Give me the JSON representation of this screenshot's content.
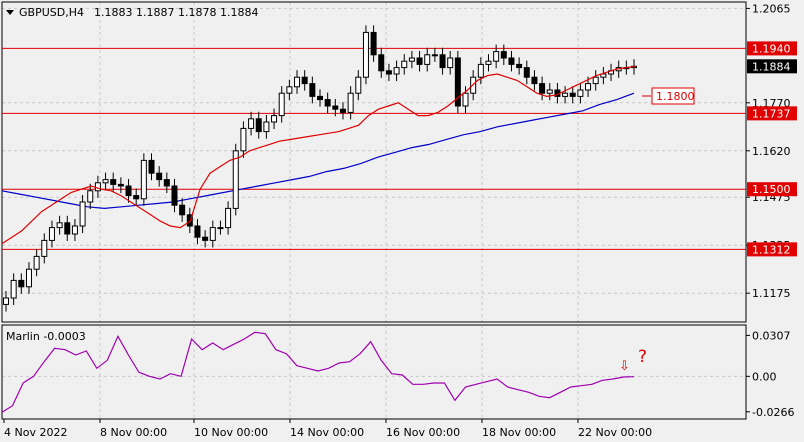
{
  "header": {
    "symbol": "GBPUSD,H4",
    "ohlc": "1.1883 1.1887 1.1878 1.1884"
  },
  "indicator": {
    "name": "Marlin -0.0003"
  },
  "annotations": {
    "arrow": "⇩",
    "question": "?"
  },
  "colors": {
    "price_line": "#e00000",
    "ma_fast": "#e00000",
    "ma_slow": "#0000c8",
    "marlin": "#a000b0",
    "price_box_bg": "#000000"
  },
  "chart_data": [
    {
      "type": "candlestick",
      "ylim": [
        1.1085,
        1.2085
      ],
      "price_ticks": [
        {
          "label": "1.2065",
          "value": 1.2065
        },
        {
          "label": "1.1770",
          "value": 1.177
        },
        {
          "label": "1.1620",
          "value": 1.162
        },
        {
          "label": "1.1475",
          "value": 1.1475
        },
        {
          "label": "1.1325",
          "value": 1.1325
        },
        {
          "label": "1.1175",
          "value": 1.1175
        }
      ],
      "hlines": [
        {
          "label": "1.1940",
          "value": 1.194
        },
        {
          "label": "1.1737",
          "value": 1.1737
        },
        {
          "label": "1.1500",
          "value": 1.15
        },
        {
          "label": "1.1312",
          "value": 1.1312
        }
      ],
      "current_price": {
        "label": "1.1884",
        "value": 1.1884
      },
      "target": {
        "label": "1.1800",
        "value": 1.18
      },
      "time_labels": [
        "4 Nov 2022",
        "8 Nov 00:00",
        "10 Nov 00:00",
        "14 Nov 00:00",
        "16 Nov 00:00",
        "18 Nov 00:00",
        "22 Nov 00:00"
      ],
      "closes": [
        1.116,
        1.1215,
        1.1195,
        1.125,
        1.129,
        1.134,
        1.138,
        1.1395,
        1.136,
        1.1385,
        1.146,
        1.1495,
        1.152,
        1.153,
        1.1515,
        1.151,
        1.148,
        1.147,
        1.159,
        1.155,
        1.153,
        1.151,
        1.145,
        1.142,
        1.1385,
        1.135,
        1.134,
        1.138,
        1.138,
        1.144,
        1.162,
        1.169,
        1.172,
        1.168,
        1.171,
        1.173,
        1.18,
        1.182,
        1.185,
        1.183,
        1.179,
        1.178,
        1.176,
        1.175,
        1.174,
        1.18,
        1.185,
        1.199,
        1.192,
        1.187,
        1.186,
        1.188,
        1.19,
        1.191,
        1.189,
        1.192,
        1.192,
        1.188,
        1.191,
        1.176,
        1.18,
        1.185,
        1.189,
        1.19,
        1.193,
        1.191,
        1.189,
        1.188,
        1.185,
        1.183,
        1.18,
        1.181,
        1.179,
        1.18,
        1.179,
        1.181,
        1.183,
        1.185,
        1.186,
        1.187,
        1.188,
        1.188,
        1.1884
      ],
      "ma_fast": [
        1.133,
        1.135,
        1.137,
        1.14,
        1.143,
        1.145,
        1.147,
        1.149,
        1.15,
        1.151,
        1.15,
        1.1495,
        1.148,
        1.146,
        1.144,
        1.142,
        1.14,
        1.1385,
        1.138,
        1.14,
        1.15,
        1.155,
        1.157,
        1.159,
        1.16,
        1.162,
        1.163,
        1.164,
        1.165,
        1.1655,
        1.166,
        1.1665,
        1.167,
        1.1675,
        1.168,
        1.169,
        1.17,
        1.173,
        1.175,
        1.176,
        1.177,
        1.175,
        1.173,
        1.173,
        1.174,
        1.176,
        1.1785,
        1.181,
        1.184,
        1.1855,
        1.186,
        1.185,
        1.184,
        1.182,
        1.18,
        1.179,
        1.1795,
        1.181,
        1.1825,
        1.184,
        1.1855,
        1.1865,
        1.1875,
        1.188,
        1.1884
      ],
      "ma_slow": [
        1.1495,
        1.1485,
        1.1475,
        1.1465,
        1.1455,
        1.1445,
        1.144,
        1.1445,
        1.145,
        1.1455,
        1.146,
        1.147,
        1.148,
        1.149,
        1.15,
        1.151,
        1.152,
        1.153,
        1.154,
        1.1555,
        1.1565,
        1.158,
        1.16,
        1.1615,
        1.163,
        1.164,
        1.1655,
        1.167,
        1.168,
        1.1695,
        1.1705,
        1.1715,
        1.1725,
        1.1735,
        1.1745,
        1.1765,
        1.178,
        1.18
      ]
    },
    {
      "type": "line",
      "name": "Marlin",
      "ylim": [
        -0.032,
        0.0385
      ],
      "ticks": [
        {
          "label": "0.0307",
          "value": 0.0307
        },
        {
          "label": "0.00",
          "value": 0.0
        },
        {
          "label": "-0.0266",
          "value": -0.0266
        }
      ],
      "values": [
        -0.027,
        -0.022,
        -0.005,
        0.0,
        0.011,
        0.021,
        0.02,
        0.016,
        0.019,
        0.006,
        0.012,
        0.03,
        0.016,
        0.003,
        0.0,
        -0.002,
        0.002,
        0.0,
        0.028,
        0.02,
        0.025,
        0.02,
        0.024,
        0.028,
        0.033,
        0.032,
        0.02,
        0.017,
        0.008,
        0.006,
        0.004,
        0.006,
        0.01,
        0.011,
        0.017,
        0.026,
        0.012,
        0.002,
        0.001,
        -0.006,
        -0.006,
        -0.005,
        -0.005,
        -0.018,
        -0.008,
        -0.006,
        -0.004,
        -0.002,
        -0.008,
        -0.01,
        -0.012,
        -0.015,
        -0.016,
        -0.012,
        -0.008,
        -0.007,
        -0.006,
        -0.003,
        -0.002,
        -0.0005,
        -0.0003
      ]
    }
  ]
}
